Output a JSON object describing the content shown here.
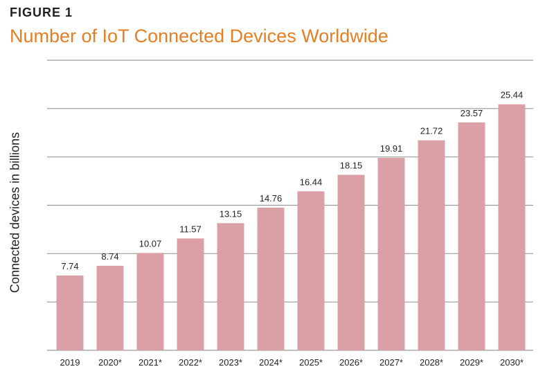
{
  "figure_label": "FIGURE 1",
  "colors": {
    "bar": "#dba0a6",
    "grid": "#9a9a9a",
    "title": "#e67e22",
    "text": "#231f20"
  },
  "chart_data": {
    "type": "bar",
    "title": "Number of IoT Connected Devices Worldwide",
    "xlabel": "",
    "ylabel": "Connected devices in billions",
    "categories": [
      "2019",
      "2020*",
      "2021*",
      "2022*",
      "2023*",
      "2024*",
      "2025*",
      "2026*",
      "2027*",
      "2028*",
      "2029*",
      "2030*"
    ],
    "values": [
      7.74,
      8.74,
      10.07,
      11.57,
      13.15,
      14.76,
      16.44,
      18.15,
      19.91,
      21.72,
      23.57,
      25.44
    ],
    "value_labels": [
      "7.74",
      "8.74",
      "10.07",
      "11.57",
      "13.15",
      "14.76",
      "16.44",
      "18.15",
      "19.91",
      "21.72",
      "23.57",
      "25.44"
    ],
    "ylim": [
      0,
      30
    ],
    "grid_step": 5,
    "grid": true,
    "legend": "none"
  }
}
